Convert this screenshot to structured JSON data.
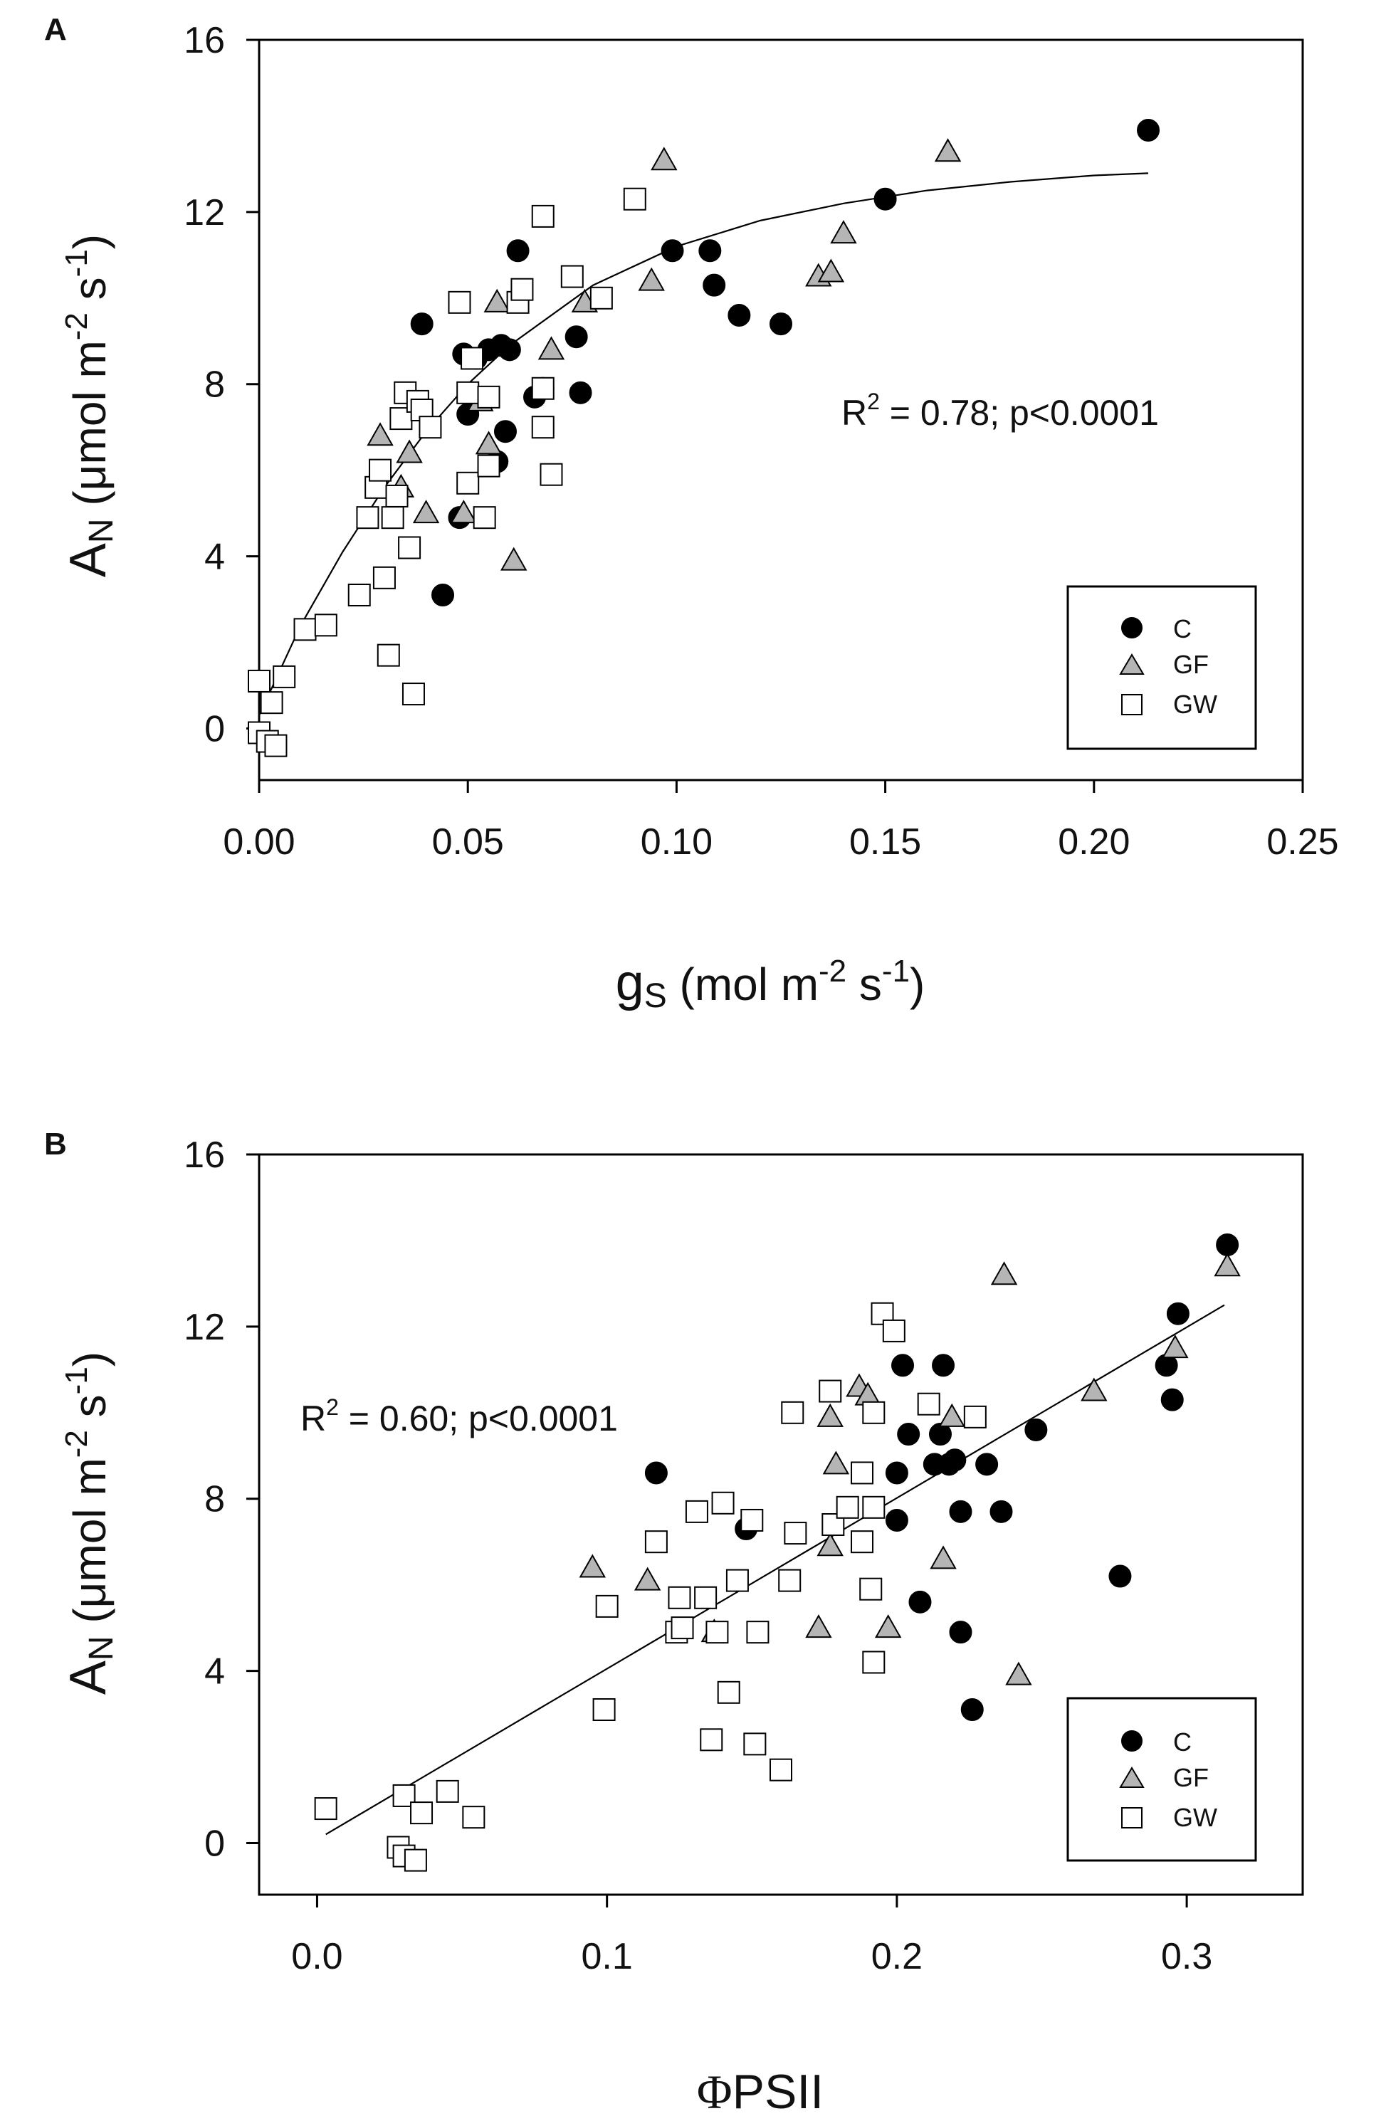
{
  "chart_data": [
    {
      "panel": "A",
      "type": "scatter",
      "xlabel_main": "g",
      "xlabel_sub": "S",
      "xlabel_unit_open": " (mol m",
      "xlabel_exp1": "-2",
      "xlabel_unit_mid": " s",
      "xlabel_exp2": "-1",
      "xlabel_close": ")",
      "xlim": [
        0,
        0.25
      ],
      "ylim": [
        -1.2,
        16
      ],
      "xticks": [
        "0.00",
        "0.05",
        "0.10",
        "0.15",
        "0.20",
        "0.25"
      ],
      "xtick_values": [
        0,
        0.05,
        0.1,
        0.15,
        0.2,
        0.25
      ],
      "yticks": [
        "0",
        "4",
        "8",
        "12",
        "16"
      ],
      "ytick_values": [
        0,
        4,
        8,
        12,
        16
      ],
      "annotation": {
        "r2_label": "R",
        "r2_exp": "2",
        "r2_text": " = 0.78; p<0.0001"
      },
      "fit": {
        "type": "curve",
        "x": [
          0.0,
          0.01,
          0.02,
          0.03,
          0.04,
          0.05,
          0.06,
          0.08,
          0.1,
          0.12,
          0.14,
          0.16,
          0.18,
          0.2,
          0.213
        ],
        "y": [
          0.3,
          2.4,
          4.1,
          5.6,
          6.9,
          8.0,
          8.9,
          10.3,
          11.2,
          11.8,
          12.2,
          12.5,
          12.7,
          12.85,
          12.9
        ]
      },
      "series": [
        {
          "name": "C",
          "marker": "filled-circle",
          "points": [
            [
              0.039,
              9.4
            ],
            [
              0.044,
              3.1
            ],
            [
              0.048,
              4.9
            ],
            [
              0.049,
              8.7
            ],
            [
              0.05,
              7.3
            ],
            [
              0.052,
              8.6
            ],
            [
              0.055,
              8.8
            ],
            [
              0.057,
              6.2
            ],
            [
              0.058,
              8.9
            ],
            [
              0.059,
              6.9
            ],
            [
              0.06,
              8.8
            ],
            [
              0.062,
              11.1
            ],
            [
              0.066,
              7.7
            ],
            [
              0.068,
              7.9
            ],
            [
              0.076,
              9.1
            ],
            [
              0.077,
              7.8
            ],
            [
              0.099,
              11.1
            ],
            [
              0.108,
              11.1
            ],
            [
              0.109,
              10.3
            ],
            [
              0.115,
              9.6
            ],
            [
              0.125,
              9.4
            ],
            [
              0.15,
              12.3
            ],
            [
              0.213,
              13.9
            ]
          ]
        },
        {
          "name": "GF",
          "marker": "gray-triangle",
          "points": [
            [
              0.029,
              6.8
            ],
            [
              0.034,
              5.6
            ],
            [
              0.036,
              6.4
            ],
            [
              0.04,
              5.0
            ],
            [
              0.049,
              5.0
            ],
            [
              0.053,
              7.6
            ],
            [
              0.055,
              6.6
            ],
            [
              0.057,
              9.9
            ],
            [
              0.061,
              3.9
            ],
            [
              0.07,
              8.8
            ],
            [
              0.078,
              9.9
            ],
            [
              0.094,
              10.4
            ],
            [
              0.097,
              13.2
            ],
            [
              0.134,
              10.5
            ],
            [
              0.137,
              10.6
            ],
            [
              0.14,
              11.5
            ],
            [
              0.165,
              13.4
            ]
          ]
        },
        {
          "name": "GW",
          "marker": "open-square",
          "points": [
            [
              0.0,
              1.1
            ],
            [
              0.0,
              -0.1
            ],
            [
              0.002,
              -0.3
            ],
            [
              0.003,
              0.6
            ],
            [
              0.004,
              -0.4
            ],
            [
              0.006,
              1.2
            ],
            [
              0.011,
              2.3
            ],
            [
              0.016,
              2.4
            ],
            [
              0.024,
              3.1
            ],
            [
              0.026,
              4.9
            ],
            [
              0.028,
              5.6
            ],
            [
              0.029,
              6.0
            ],
            [
              0.03,
              3.5
            ],
            [
              0.031,
              1.7
            ],
            [
              0.032,
              4.9
            ],
            [
              0.033,
              5.4
            ],
            [
              0.034,
              7.2
            ],
            [
              0.035,
              7.8
            ],
            [
              0.036,
              4.2
            ],
            [
              0.037,
              0.8
            ],
            [
              0.038,
              7.6
            ],
            [
              0.039,
              7.4
            ],
            [
              0.041,
              7.0
            ],
            [
              0.048,
              9.9
            ],
            [
              0.05,
              7.8
            ],
            [
              0.05,
              5.7
            ],
            [
              0.051,
              8.6
            ],
            [
              0.054,
              4.9
            ],
            [
              0.055,
              6.1
            ],
            [
              0.055,
              7.7
            ],
            [
              0.062,
              9.9
            ],
            [
              0.063,
              10.2
            ],
            [
              0.068,
              11.9
            ],
            [
              0.068,
              7.0
            ],
            [
              0.068,
              7.9
            ],
            [
              0.07,
              5.9
            ],
            [
              0.075,
              10.5
            ],
            [
              0.082,
              10.0
            ],
            [
              0.09,
              12.3
            ]
          ]
        }
      ],
      "legend": {
        "position": "bottom-right",
        "entries": [
          "C",
          "GF",
          "GW"
        ]
      }
    },
    {
      "panel": "B",
      "type": "scatter",
      "xlabel_phi": "Φ",
      "xlabel_rest": "PSII",
      "xlim": [
        -0.02,
        0.34
      ],
      "ylim": [
        -1.2,
        16
      ],
      "xticks": [
        "0.0",
        "0.1",
        "0.2",
        "0.3"
      ],
      "xtick_values": [
        0.0,
        0.1,
        0.2,
        0.3
      ],
      "yticks": [
        "0",
        "4",
        "8",
        "12",
        "16"
      ],
      "ytick_values": [
        0,
        4,
        8,
        12,
        16
      ],
      "annotation": {
        "r2_label": "R",
        "r2_exp": "2",
        "r2_text": " = 0.60; p<0.0001"
      },
      "fit": {
        "type": "line",
        "x": [
          0.003,
          0.313
        ],
        "y": [
          0.2,
          12.5
        ]
      },
      "series": [
        {
          "name": "C",
          "marker": "filled-circle",
          "points": [
            [
              0.117,
              8.6
            ],
            [
              0.148,
              7.3
            ],
            [
              0.2,
              7.5
            ],
            [
              0.2,
              8.6
            ],
            [
              0.202,
              11.1
            ],
            [
              0.204,
              9.5
            ],
            [
              0.208,
              5.6
            ],
            [
              0.213,
              8.8
            ],
            [
              0.215,
              9.5
            ],
            [
              0.216,
              11.1
            ],
            [
              0.218,
              8.8
            ],
            [
              0.22,
              8.9
            ],
            [
              0.222,
              4.9
            ],
            [
              0.222,
              7.7
            ],
            [
              0.226,
              3.1
            ],
            [
              0.231,
              8.8
            ],
            [
              0.236,
              7.7
            ],
            [
              0.248,
              9.6
            ],
            [
              0.277,
              6.2
            ],
            [
              0.293,
              11.1
            ],
            [
              0.295,
              10.3
            ],
            [
              0.297,
              12.3
            ],
            [
              0.314,
              13.9
            ]
          ]
        },
        {
          "name": "GF",
          "marker": "gray-triangle",
          "points": [
            [
              0.095,
              6.4
            ],
            [
              0.114,
              6.1
            ],
            [
              0.137,
              4.9
            ],
            [
              0.173,
              5.0
            ],
            [
              0.177,
              9.9
            ],
            [
              0.177,
              6.9
            ],
            [
              0.179,
              8.8
            ],
            [
              0.187,
              10.6
            ],
            [
              0.19,
              10.4
            ],
            [
              0.197,
              5.0
            ],
            [
              0.216,
              6.6
            ],
            [
              0.219,
              9.9
            ],
            [
              0.237,
              13.2
            ],
            [
              0.242,
              3.9
            ],
            [
              0.268,
              10.5
            ],
            [
              0.296,
              11.5
            ],
            [
              0.314,
              13.4
            ]
          ]
        },
        {
          "name": "GW",
          "marker": "open-square",
          "points": [
            [
              0.003,
              0.8
            ],
            [
              0.028,
              -0.1
            ],
            [
              0.03,
              -0.3
            ],
            [
              0.03,
              1.1
            ],
            [
              0.034,
              -0.4
            ],
            [
              0.036,
              0.7
            ],
            [
              0.045,
              1.2
            ],
            [
              0.054,
              0.6
            ],
            [
              0.099,
              3.1
            ],
            [
              0.1,
              5.5
            ],
            [
              0.117,
              7.0
            ],
            [
              0.124,
              4.9
            ],
            [
              0.125,
              5.7
            ],
            [
              0.126,
              5.0
            ],
            [
              0.131,
              7.7
            ],
            [
              0.134,
              5.7
            ],
            [
              0.136,
              2.4
            ],
            [
              0.138,
              4.9
            ],
            [
              0.14,
              7.9
            ],
            [
              0.142,
              3.5
            ],
            [
              0.145,
              6.1
            ],
            [
              0.15,
              7.5
            ],
            [
              0.151,
              2.3
            ],
            [
              0.152,
              4.9
            ],
            [
              0.16,
              1.7
            ],
            [
              0.163,
              6.1
            ],
            [
              0.164,
              10.0
            ],
            [
              0.165,
              7.2
            ],
            [
              0.177,
              10.5
            ],
            [
              0.178,
              7.4
            ],
            [
              0.183,
              7.8
            ],
            [
              0.188,
              7.0
            ],
            [
              0.188,
              8.6
            ],
            [
              0.191,
              5.9
            ],
            [
              0.192,
              4.2
            ],
            [
              0.192,
              7.8
            ],
            [
              0.192,
              10.0
            ],
            [
              0.195,
              12.3
            ],
            [
              0.199,
              11.9
            ],
            [
              0.211,
              10.2
            ],
            [
              0.227,
              9.9
            ]
          ]
        }
      ],
      "legend": {
        "position": "bottom-right",
        "entries": [
          "C",
          "GF",
          "GW"
        ]
      }
    }
  ],
  "panels": {
    "a": {
      "label": "A"
    },
    "b": {
      "label": "B"
    }
  },
  "y_axis_label": {
    "main": "A",
    "sub": "N",
    "unit_open": " (μmol m",
    "exp1": "-2",
    "unit_mid": " s",
    "exp2": "-1",
    "unit_close": ")"
  }
}
